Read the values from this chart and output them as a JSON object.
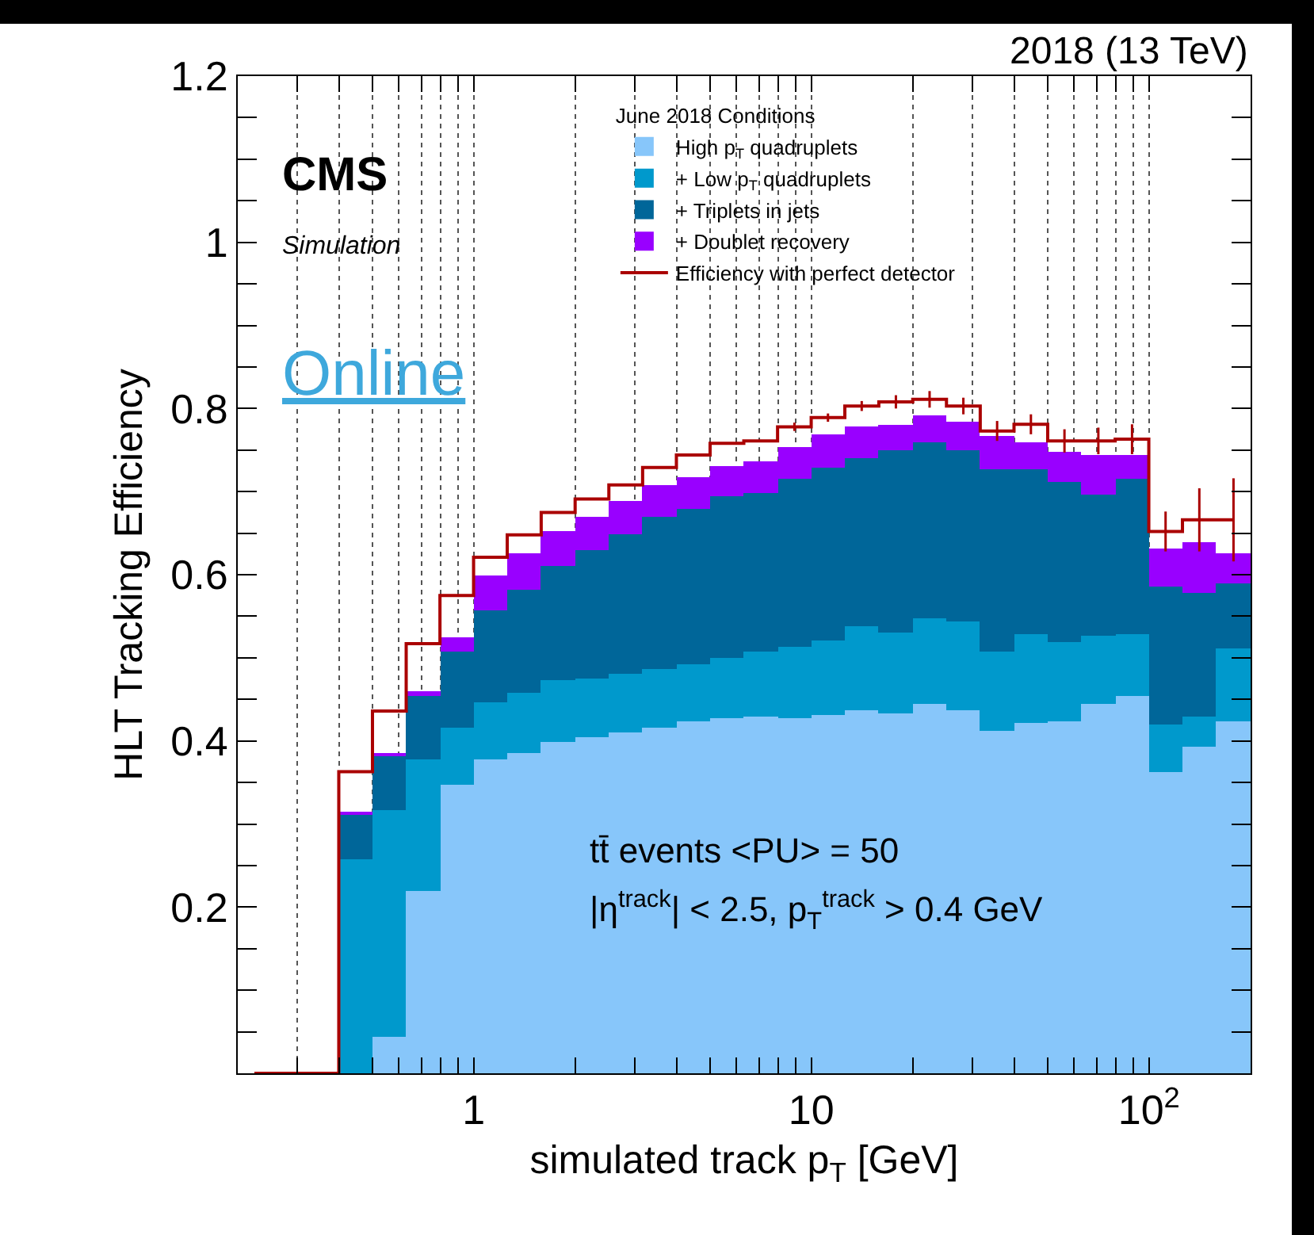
{
  "chart_data": {
    "type": "bar",
    "stacked": true,
    "log": "x",
    "xlabel": "simulated track p$_{T}$ [GeV]",
    "ylabel": "HLT Tracking Efficiency",
    "legend_title": "June 2018 Conditions",
    "x": [
      0.447,
      0.562,
      0.708,
      0.891,
      1.12,
      1.41,
      1.78,
      2.24,
      2.82,
      3.55,
      4.47,
      5.62,
      7.08,
      8.91,
      11.2,
      14.1,
      17.8,
      22.4,
      28.2,
      35.5,
      44.7,
      56.2,
      70.8,
      89.1,
      112,
      141,
      178
    ],
    "series": [
      {
        "name": "High p$_{T}$ quadruplets",
        "color": "#87c6fa",
        "values": [
          0,
          0.043,
          0.219,
          0.347,
          0.377,
          0.386,
          0.399,
          0.404,
          0.41,
          0.416,
          0.423,
          0.427,
          0.429,
          0.428,
          0.431,
          0.436,
          0.434,
          0.444,
          0.437,
          0.412,
          0.421,
          0.424,
          0.444,
          0.455,
          0.363,
          0.393,
          0.423
        ]
      },
      {
        "name": "+ Low p$_{T}$ quadruplets",
        "color": "#0099cc",
        "values": [
          0.257,
          0.273,
          0.158,
          0.068,
          0.07,
          0.072,
          0.075,
          0.072,
          0.07,
          0.071,
          0.07,
          0.073,
          0.079,
          0.085,
          0.089,
          0.102,
          0.097,
          0.103,
          0.107,
          0.096,
          0.108,
          0.095,
          0.082,
          0.074,
          0.056,
          0.037,
          0.089
        ]
      },
      {
        "name": "+ Triplets in jets",
        "color": "#006699",
        "values": [
          0.054,
          0.067,
          0.078,
          0.093,
          0.11,
          0.124,
          0.136,
          0.153,
          0.168,
          0.182,
          0.187,
          0.195,
          0.191,
          0.203,
          0.208,
          0.203,
          0.218,
          0.212,
          0.205,
          0.218,
          0.197,
          0.192,
          0.171,
          0.186,
          0.167,
          0.148,
          0.077
        ]
      },
      {
        "name": "+ Doublet recovery",
        "color": "#9900ff",
        "values": [
          0.002,
          0.002,
          0.005,
          0.017,
          0.043,
          0.044,
          0.043,
          0.041,
          0.04,
          0.039,
          0.038,
          0.036,
          0.037,
          0.038,
          0.04,
          0.038,
          0.032,
          0.033,
          0.036,
          0.04,
          0.033,
          0.036,
          0.048,
          0.03,
          0.046,
          0.061,
          0.037
        ]
      },
      {
        "name": "Efficiency with perfect detector",
        "type": "step",
        "color": "#aa0000",
        "x": [
          0.224,
          0.282,
          0.355,
          0.447,
          0.562,
          0.708,
          0.891,
          1.12,
          1.41,
          1.78,
          2.24,
          2.82,
          3.55,
          4.47,
          5.62,
          7.08,
          8.91,
          11.2,
          14.1,
          17.8,
          22.4,
          28.2,
          35.5,
          44.7,
          56.2,
          70.8,
          89.1,
          112,
          141,
          178
        ],
        "values": [
          0,
          0,
          0,
          0.363,
          0.436,
          0.517,
          0.575,
          0.621,
          0.648,
          0.675,
          0.691,
          0.708,
          0.729,
          0.744,
          0.758,
          0.761,
          0.778,
          0.789,
          0.803,
          0.808,
          0.811,
          0.803,
          0.773,
          0.781,
          0.761,
          0.761,
          0.763,
          0.652,
          0.666,
          0.666
        ],
        "errors": [
          null,
          null,
          null,
          null,
          null,
          null,
          null,
          null,
          null,
          null,
          null,
          null,
          null,
          null,
          null,
          null,
          0.005,
          0.005,
          0.006,
          0.008,
          0.01,
          0.01,
          0.012,
          0.012,
          0.014,
          0.016,
          0.018,
          0.024,
          0.038,
          0.05
        ]
      }
    ],
    "xlim": [
      0.2,
      200
    ],
    "ylim": [
      0,
      1.2
    ],
    "xticks": [
      {
        "value": 0.3,
        "label": null
      },
      {
        "value": 0.4,
        "label": null
      },
      {
        "value": 0.5,
        "label": null
      },
      {
        "value": 0.6,
        "label": null
      },
      {
        "value": 0.7,
        "label": null
      },
      {
        "value": 0.8,
        "label": null
      },
      {
        "value": 0.9,
        "label": null
      },
      1,
      {
        "value": 2,
        "label": null
      },
      {
        "value": 3,
        "label": null
      },
      {
        "value": 4,
        "label": null
      },
      {
        "value": 5,
        "label": null
      },
      {
        "value": 6,
        "label": null
      },
      {
        "value": 7,
        "label": null
      },
      {
        "value": 8,
        "label": null
      },
      {
        "value": 9,
        "label": null
      },
      10,
      {
        "value": 20,
        "label": null
      },
      {
        "value": 30,
        "label": null
      },
      {
        "value": 40,
        "label": null
      },
      {
        "value": 50,
        "label": null
      },
      {
        "value": 60,
        "label": null
      },
      {
        "value": 70,
        "label": null
      },
      {
        "value": 80,
        "label": null
      },
      {
        "value": 90,
        "label": null
      },
      {
        "value": 100,
        "label": "10$^{2}$"
      }
    ],
    "yticks": [
      {
        "value": 0.05,
        "label": null
      },
      {
        "value": 0.1,
        "label": null
      },
      {
        "value": 0.15,
        "label": null
      },
      0.2,
      {
        "value": 0.25,
        "label": null
      },
      {
        "value": 0.3,
        "label": null
      },
      {
        "value": 0.35,
        "label": null
      },
      0.4,
      {
        "value": 0.45,
        "label": null
      },
      {
        "value": 0.5,
        "label": null
      },
      {
        "value": 0.55,
        "label": null
      },
      0.6,
      {
        "value": 0.65,
        "label": null
      },
      {
        "value": 0.7,
        "label": null
      },
      {
        "value": 0.75,
        "label": null
      },
      0.8,
      {
        "value": 0.85,
        "label": null
      },
      {
        "value": 0.9,
        "label": null
      },
      {
        "value": 0.95,
        "label": null
      },
      1,
      {
        "value": 1.05,
        "label": null
      },
      {
        "value": 1.1,
        "label": null
      },
      {
        "value": 1.15,
        "label": null
      },
      1.2
    ],
    "grid": "x",
    "legend": "top",
    "annotations": [
      "2018 (13 TeV)",
      "CMS",
      "Simulation",
      "Online",
      "tt̄ events <PU> = 50",
      "|η$^{track}$| < 2.5, p$_{T}$$^{track}$ > 0.4 GeV"
    ]
  }
}
